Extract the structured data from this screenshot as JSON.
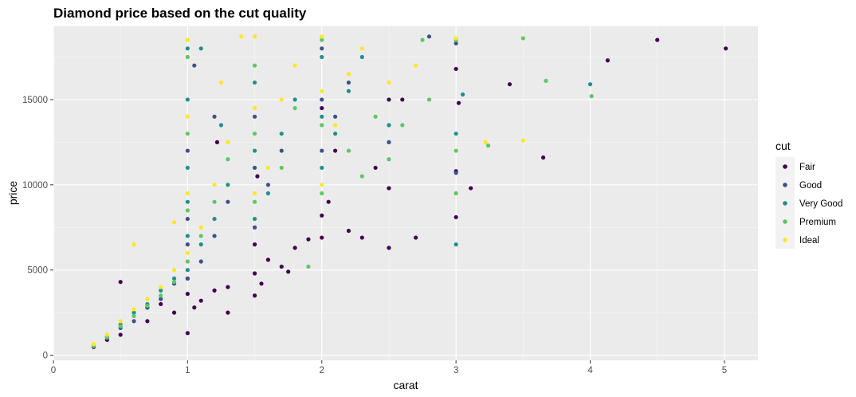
{
  "chart_data": {
    "type": "scatter",
    "title": "Diamond price based on the cut quality",
    "xlabel": "carat",
    "ylabel": "price",
    "xlim": [
      0,
      5.25
    ],
    "ylim": [
      -300,
      19300
    ],
    "x_ticks": [
      0,
      1,
      2,
      3,
      4,
      5
    ],
    "y_ticks": [
      0,
      5000,
      10000,
      15000
    ],
    "legend": {
      "title": "cut",
      "placement": "right",
      "entries": [
        "Fair",
        "Good",
        "Very Good",
        "Premium",
        "Ideal"
      ]
    },
    "grid": true,
    "background_color": "#ebebeb",
    "colors": {
      "Fair": "#440154",
      "Good": "#3b528b",
      "Very Good": "#21908c",
      "Premium": "#5dc863",
      "Ideal": "#fde725"
    },
    "series": [
      {
        "name": "Fair",
        "points": [
          [
            0.3,
            480
          ],
          [
            0.4,
            900
          ],
          [
            0.5,
            1200
          ],
          [
            0.5,
            4300
          ],
          [
            0.7,
            2000
          ],
          [
            0.7,
            2800
          ],
          [
            0.8,
            3000
          ],
          [
            0.9,
            2500
          ],
          [
            1.0,
            1300
          ],
          [
            1.0,
            3600
          ],
          [
            1.0,
            4500
          ],
          [
            1.05,
            2800
          ],
          [
            1.1,
            3200
          ],
          [
            1.2,
            3800
          ],
          [
            1.3,
            4000
          ],
          [
            1.3,
            2500
          ],
          [
            1.5,
            3500
          ],
          [
            1.5,
            4800
          ],
          [
            1.5,
            6500
          ],
          [
            1.55,
            4200
          ],
          [
            1.6,
            5600
          ],
          [
            1.7,
            5200
          ],
          [
            1.75,
            4900
          ],
          [
            1.8,
            6300
          ],
          [
            1.9,
            6800
          ],
          [
            2.0,
            8200
          ],
          [
            2.0,
            6900
          ],
          [
            2.0,
            14500
          ],
          [
            2.05,
            9000
          ],
          [
            2.1,
            12000
          ],
          [
            2.2,
            7300
          ],
          [
            2.3,
            6900
          ],
          [
            2.4,
            11000
          ],
          [
            2.5,
            6300
          ],
          [
            2.5,
            9800
          ],
          [
            2.5,
            15000
          ],
          [
            2.7,
            6900
          ],
          [
            3.0,
            8100
          ],
          [
            3.0,
            10800
          ],
          [
            3.0,
            16800
          ],
          [
            3.02,
            14800
          ],
          [
            3.4,
            15900
          ],
          [
            3.65,
            11600
          ],
          [
            4.13,
            17300
          ],
          [
            4.5,
            18500
          ],
          [
            5.01,
            18000
          ],
          [
            1.22,
            12500
          ],
          [
            1.52,
            10500
          ],
          [
            2.6,
            15000
          ],
          [
            3.11,
            9800
          ]
        ]
      },
      {
        "name": "Good",
        "points": [
          [
            0.3,
            500
          ],
          [
            0.4,
            1000
          ],
          [
            0.5,
            1600
          ],
          [
            0.6,
            2000
          ],
          [
            0.7,
            2800
          ],
          [
            0.8,
            3300
          ],
          [
            0.9,
            4200
          ],
          [
            1.0,
            4500
          ],
          [
            1.0,
            6500
          ],
          [
            1.0,
            8000
          ],
          [
            1.0,
            12000
          ],
          [
            1.1,
            5500
          ],
          [
            1.2,
            7000
          ],
          [
            1.3,
            9000
          ],
          [
            1.5,
            7500
          ],
          [
            1.5,
            11000
          ],
          [
            1.5,
            14000
          ],
          [
            1.6,
            10000
          ],
          [
            1.7,
            12000
          ],
          [
            2.0,
            12000
          ],
          [
            2.0,
            15000
          ],
          [
            2.0,
            18000
          ],
          [
            2.1,
            14000
          ],
          [
            2.2,
            16000
          ],
          [
            2.5,
            12500
          ],
          [
            2.8,
            18700
          ],
          [
            3.0,
            10700
          ],
          [
            3.0,
            18300
          ],
          [
            1.05,
            17000
          ],
          [
            1.2,
            14000
          ]
        ]
      },
      {
        "name": "Very Good",
        "points": [
          [
            0.3,
            600
          ],
          [
            0.4,
            1100
          ],
          [
            0.5,
            1800
          ],
          [
            0.6,
            2500
          ],
          [
            0.7,
            3000
          ],
          [
            0.8,
            3800
          ],
          [
            0.9,
            4500
          ],
          [
            1.0,
            5000
          ],
          [
            1.0,
            7000
          ],
          [
            1.0,
            9000
          ],
          [
            1.0,
            11000
          ],
          [
            1.0,
            15000
          ],
          [
            1.0,
            18000
          ],
          [
            1.1,
            6500
          ],
          [
            1.2,
            8000
          ],
          [
            1.3,
            10000
          ],
          [
            1.5,
            8000
          ],
          [
            1.5,
            12000
          ],
          [
            1.5,
            16000
          ],
          [
            1.6,
            9500
          ],
          [
            1.7,
            13000
          ],
          [
            1.8,
            15000
          ],
          [
            2.0,
            11000
          ],
          [
            2.0,
            14000
          ],
          [
            2.0,
            17500
          ],
          [
            2.1,
            13000
          ],
          [
            2.2,
            15500
          ],
          [
            2.3,
            17500
          ],
          [
            2.5,
            13500
          ],
          [
            3.0,
            6500
          ],
          [
            3.0,
            13000
          ],
          [
            3.05,
            15300
          ],
          [
            4.0,
            15900
          ],
          [
            1.1,
            18000
          ],
          [
            1.25,
            13500
          ]
        ]
      },
      {
        "name": "Premium",
        "points": [
          [
            0.3,
            550
          ],
          [
            0.4,
            1050
          ],
          [
            0.5,
            1700
          ],
          [
            0.6,
            2300
          ],
          [
            0.7,
            2900
          ],
          [
            0.8,
            3500
          ],
          [
            0.9,
            4300
          ],
          [
            1.0,
            5500
          ],
          [
            1.0,
            8500
          ],
          [
            1.0,
            13000
          ],
          [
            1.0,
            17500
          ],
          [
            1.1,
            7000
          ],
          [
            1.2,
            9000
          ],
          [
            1.3,
            11500
          ],
          [
            1.5,
            9000
          ],
          [
            1.5,
            13000
          ],
          [
            1.5,
            17000
          ],
          [
            1.7,
            11000
          ],
          [
            1.8,
            14500
          ],
          [
            2.0,
            9500
          ],
          [
            2.0,
            13500
          ],
          [
            2.0,
            18500
          ],
          [
            2.2,
            12000
          ],
          [
            2.4,
            14000
          ],
          [
            2.5,
            11500
          ],
          [
            2.6,
            13500
          ],
          [
            2.8,
            15000
          ],
          [
            3.0,
            12000
          ],
          [
            3.0,
            9500
          ],
          [
            3.0,
            18500
          ],
          [
            3.24,
            12300
          ],
          [
            3.5,
            18600
          ],
          [
            3.67,
            16100
          ],
          [
            4.01,
            15200
          ],
          [
            1.9,
            5200
          ],
          [
            2.75,
            18500
          ],
          [
            2.3,
            10500
          ]
        ]
      },
      {
        "name": "Ideal",
        "points": [
          [
            0.3,
            650
          ],
          [
            0.4,
            1200
          ],
          [
            0.5,
            2000
          ],
          [
            0.6,
            2700
          ],
          [
            0.7,
            3300
          ],
          [
            0.8,
            4000
          ],
          [
            0.9,
            5000
          ],
          [
            0.6,
            6500
          ],
          [
            1.0,
            6000
          ],
          [
            1.0,
            9500
          ],
          [
            1.0,
            14000
          ],
          [
            1.0,
            18500
          ],
          [
            1.1,
            7500
          ],
          [
            1.2,
            10000
          ],
          [
            1.3,
            12500
          ],
          [
            1.4,
            18700
          ],
          [
            1.5,
            9500
          ],
          [
            1.5,
            14500
          ],
          [
            1.5,
            18700
          ],
          [
            1.6,
            11000
          ],
          [
            1.7,
            15000
          ],
          [
            1.8,
            17000
          ],
          [
            2.0,
            10000
          ],
          [
            2.0,
            15500
          ],
          [
            2.0,
            18700
          ],
          [
            2.1,
            13500
          ],
          [
            2.2,
            16500
          ],
          [
            2.3,
            18000
          ],
          [
            2.5,
            16000
          ],
          [
            2.7,
            17000
          ],
          [
            3.0,
            18600
          ],
          [
            3.22,
            12500
          ],
          [
            3.5,
            12600
          ],
          [
            1.25,
            16000
          ],
          [
            0.9,
            7800
          ]
        ]
      }
    ]
  }
}
